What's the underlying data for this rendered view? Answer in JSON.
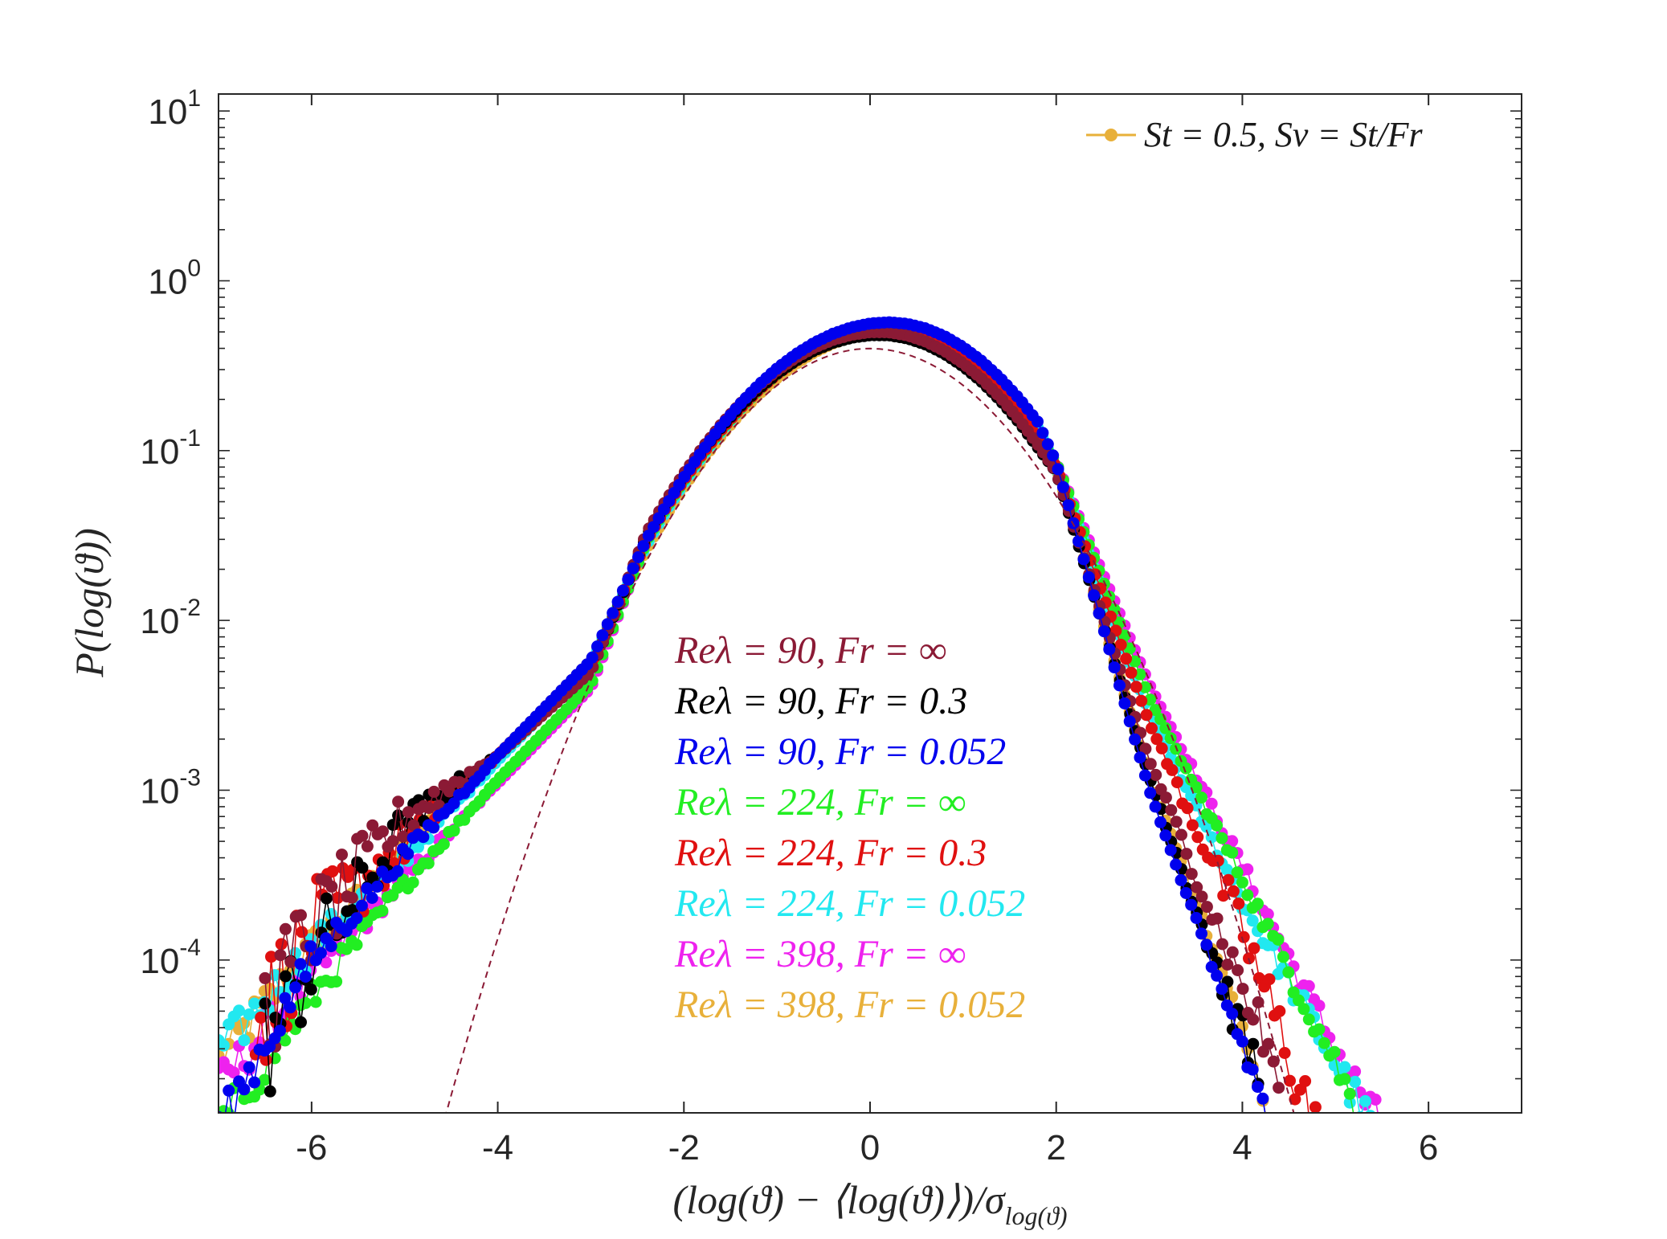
{
  "chart_data": {
    "type": "scatter",
    "x_axis": {
      "label": "(log(ϑ) − ⟨log(ϑ)⟩)/σ",
      "label_subscript": "log(ϑ)",
      "range": [
        -7,
        7
      ],
      "ticks": [
        -6,
        -4,
        -2,
        0,
        2,
        4,
        6
      ],
      "tick_labels": [
        "-6",
        "-4",
        "-2",
        "0",
        "2",
        "4",
        "6"
      ]
    },
    "y_axis": {
      "label": "P(log(ϑ))",
      "scale": "log",
      "range_log10": [
        -4.9,
        1.1
      ],
      "ticks_log10": [
        1,
        0,
        -1,
        -2,
        -3,
        -4
      ],
      "tick_labels": [
        {
          "base": "10",
          "exp": "1"
        },
        {
          "base": "10",
          "exp": "0"
        },
        {
          "base": "10",
          "exp": "-1"
        },
        {
          "base": "10",
          "exp": "-2"
        },
        {
          "base": "10",
          "exp": "-3"
        },
        {
          "base": "10",
          "exp": "-4"
        }
      ]
    },
    "legend": {
      "position": "top-right",
      "entries": [
        {
          "label": "St = 0.5, Sv = St/Fr",
          "color": "#E8B03A"
        }
      ]
    },
    "annotations": [
      {
        "text": "Reλ = 90, Fr = ∞",
        "color": "#8B1A35"
      },
      {
        "text": "Reλ = 90, Fr = 0.3",
        "color": "#000000"
      },
      {
        "text": "Reλ = 90, Fr = 0.052",
        "color": "#0000EE"
      },
      {
        "text": "Reλ = 224, Fr = ∞",
        "color": "#22EE22"
      },
      {
        "text": "Reλ = 224, Fr = 0.3",
        "color": "#E01010"
      },
      {
        "text": "Reλ = 224, Fr = 0.052",
        "color": "#22E8F0"
      },
      {
        "text": "Reλ = 398, Fr = ∞",
        "color": "#EE22EE"
      },
      {
        "text": "Reλ = 398, Fr = 0.052",
        "color": "#E8B03A"
      }
    ],
    "reference_curve": {
      "name": "Gaussian",
      "style": "dashed",
      "color": "#8B1A35",
      "mean": 0,
      "std": 1
    },
    "series": [
      {
        "name": "Reλ = 398, Fr = 0.052",
        "color": "#E8B03A",
        "peak": 0.5,
        "mode": 0.2,
        "left": [
          [
            -3,
            0.0058
          ],
          [
            -4,
            0.0016
          ],
          [
            -5,
            0.00045
          ],
          [
            -6,
            0.00012
          ],
          [
            -7,
            2.5e-05
          ]
        ],
        "right": [
          [
            2,
            0.08
          ],
          [
            3,
            0.0012
          ],
          [
            4,
            4e-05
          ],
          [
            4.3,
            1e-05
          ]
        ]
      },
      {
        "name": "Reλ = 398, Fr = ∞",
        "color": "#EE22EE",
        "peak": 0.5,
        "mode": 0.15,
        "left": [
          [
            -3,
            0.004
          ],
          [
            -4,
            0.0011
          ],
          [
            -5,
            0.0003
          ],
          [
            -6,
            8e-05
          ],
          [
            -7,
            1.8e-05
          ]
        ],
        "right": [
          [
            2,
            0.085
          ],
          [
            3,
            0.0042
          ],
          [
            4,
            0.00035
          ],
          [
            5,
            3e-05
          ],
          [
            5.6,
            8e-06
          ]
        ]
      },
      {
        "name": "Reλ = 224, Fr = 0.052",
        "color": "#22E8F0",
        "peak": 0.53,
        "mode": 0.2,
        "left": [
          [
            -3,
            0.0055
          ],
          [
            -4,
            0.0015
          ],
          [
            -5,
            0.0004
          ],
          [
            -6,
            0.00012
          ],
          [
            -7,
            2.8e-05
          ]
        ],
        "right": [
          [
            2,
            0.08
          ],
          [
            3,
            0.0028
          ],
          [
            4,
            0.00022
          ],
          [
            5,
            2.5e-05
          ],
          [
            5.4,
            1e-05
          ]
        ]
      },
      {
        "name": "Reλ = 224, Fr = ∞",
        "color": "#22EE22",
        "peak": 0.5,
        "mode": 0.15,
        "left": [
          [
            -3,
            0.0042
          ],
          [
            -4,
            0.00115
          ],
          [
            -5,
            0.00028
          ],
          [
            -6,
            6e-05
          ],
          [
            -7,
            1e-05
          ]
        ],
        "right": [
          [
            2,
            0.085
          ],
          [
            3,
            0.0035
          ],
          [
            4,
            0.0003
          ],
          [
            5,
            2.5e-05
          ],
          [
            5.3,
            1e-05
          ]
        ]
      },
      {
        "name": "Reλ = 224, Fr = 0.3",
        "color": "#E01010",
        "peak": 0.5,
        "mode": 0.15,
        "left": [
          [
            -3,
            0.0055
          ],
          [
            -4,
            0.0016
          ],
          [
            -5,
            0.0005
          ],
          [
            -6,
            0.00015
          ],
          [
            -6.6,
            4e-05
          ]
        ],
        "right": [
          [
            2,
            0.08
          ],
          [
            3,
            0.0025
          ],
          [
            4,
            0.00015
          ],
          [
            4.8,
            1e-05
          ]
        ]
      },
      {
        "name": "Reλ = 90, Fr = 0.3",
        "color": "#000000",
        "peak": 0.48,
        "mode": 0.1,
        "left": [
          [
            -3,
            0.005
          ],
          [
            -4,
            0.0016
          ],
          [
            -5,
            0.0006
          ],
          [
            -6,
            0.0001
          ],
          [
            -6.5,
            3e-05
          ]
        ],
        "right": [
          [
            2,
            0.075
          ],
          [
            3,
            0.0012
          ],
          [
            4,
            3.5e-05
          ],
          [
            4.2,
            2e-05
          ]
        ]
      },
      {
        "name": "Reλ = 90, Fr = ∞",
        "color": "#8B1A35",
        "peak": 0.5,
        "mode": 0.1,
        "left": [
          [
            -3,
            0.005
          ],
          [
            -4,
            0.0016
          ],
          [
            -5,
            0.0007
          ],
          [
            -6,
            0.00015
          ],
          [
            -6.5,
            5e-05
          ]
        ],
        "right": [
          [
            2,
            0.075
          ],
          [
            3,
            0.0015
          ],
          [
            4,
            7e-05
          ],
          [
            4.4,
            2e-05
          ]
        ]
      },
      {
        "name": "Reλ = 90, Fr = 0.052",
        "color": "#0000EE",
        "peak": 0.57,
        "mode": 0.2,
        "left": [
          [
            -3,
            0.0058
          ],
          [
            -4,
            0.0016
          ],
          [
            -5,
            0.00042
          ],
          [
            -6,
            0.0001
          ],
          [
            -7,
            1e-05
          ]
        ],
        "right": [
          [
            2,
            0.085
          ],
          [
            3,
            0.001
          ],
          [
            4,
            3e-05
          ],
          [
            4.3,
            1e-05
          ]
        ]
      }
    ]
  }
}
